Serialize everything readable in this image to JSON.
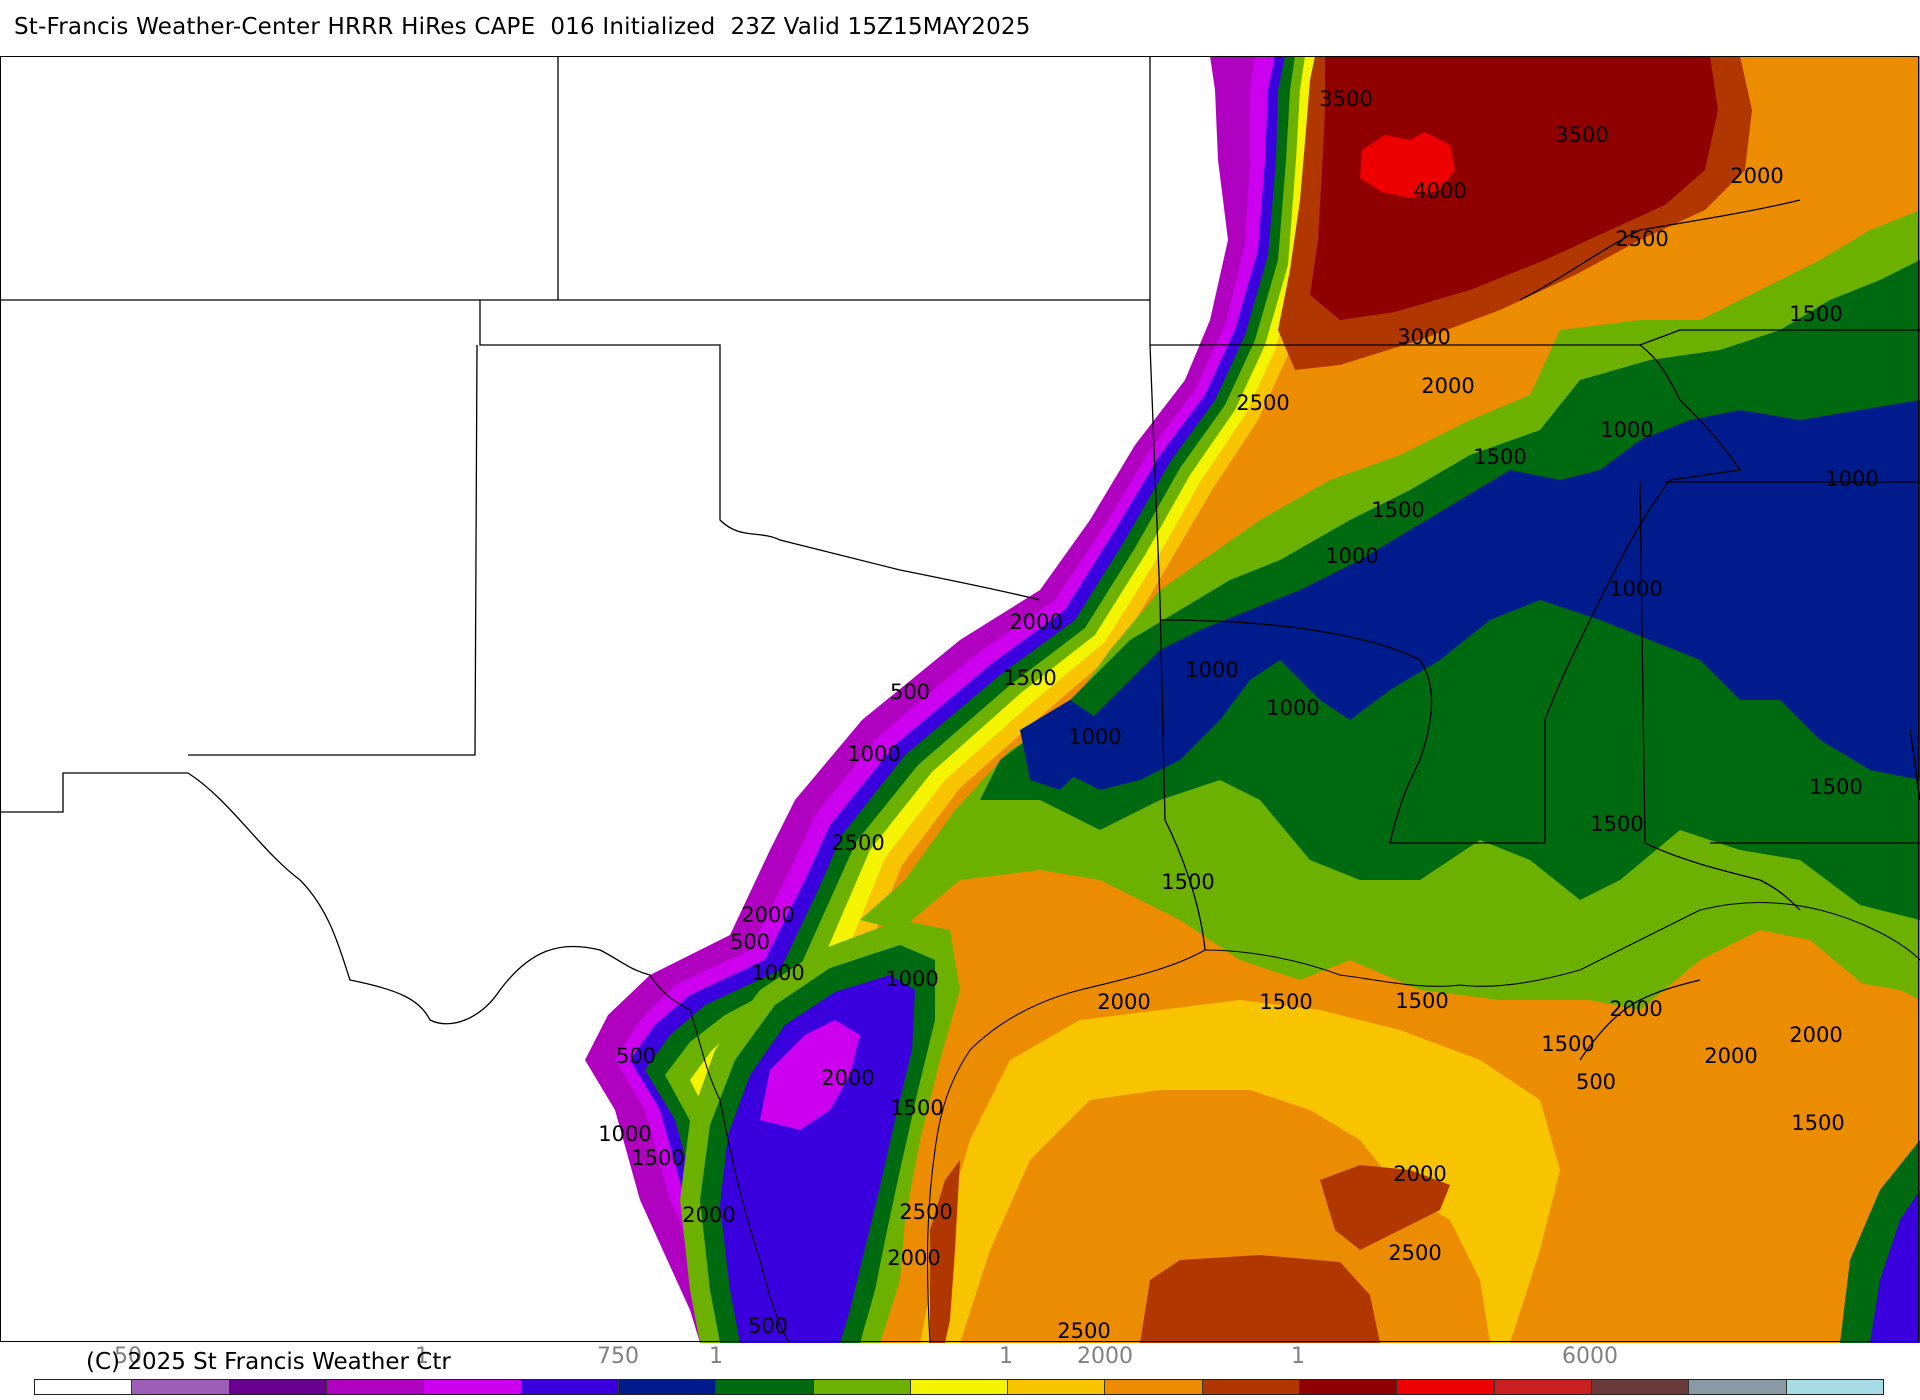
{
  "header": {
    "title": "St-Francis Weather-Center HRRR HiRes CAPE  016 Initialized  23Z Valid 15Z15MAY2025"
  },
  "footer": {
    "copyright": "(C) 2025 St Francis Weather Ctr"
  },
  "legend": {
    "tick_labels": [
      {
        "label": "50"
      },
      {
        "label": "1"
      },
      {
        "label": "750"
      },
      {
        "label": "1"
      },
      {
        "label": "1"
      },
      {
        "label": "2000"
      },
      {
        "label": "1"
      },
      {
        "label": "6000"
      }
    ],
    "colors": [
      "#ffffff",
      "#9c5fb5",
      "#6a0090",
      "#b000c0",
      "#cc00ee",
      "#3a00dd",
      "#001c8c",
      "#006a10",
      "#6cb000",
      "#f4f400",
      "#f8c400",
      "#ec8c00",
      "#b03800",
      "#900000",
      "#ee0000",
      "#c82020",
      "#6a3a3a",
      "#8a9aa4",
      "#a8dce4"
    ]
  },
  "map": {
    "colors": {
      "none": "#ffffff",
      "c250": "#b000c0",
      "c500": "#cc00ee",
      "c750": "#3a00dd",
      "c1000": "#001c8c",
      "c1250": "#006a10",
      "c1500": "#6cb000",
      "c1750": "#f4f400",
      "c2000": "#f8c400",
      "c2250": "#ec8c00",
      "c2500": "#b03800",
      "c3000": "#900000",
      "c4000": "#ee0000"
    },
    "contour_labels": [
      {
        "text": "3500"
      },
      {
        "text": "3500"
      },
      {
        "text": "4000"
      },
      {
        "text": "2000"
      },
      {
        "text": "2500"
      },
      {
        "text": "3000"
      },
      {
        "text": "1500"
      },
      {
        "text": "2500"
      },
      {
        "text": "2000"
      },
      {
        "text": "1000"
      },
      {
        "text": "1500"
      },
      {
        "text": "1000"
      },
      {
        "text": "1500"
      },
      {
        "text": "1000"
      },
      {
        "text": "1000"
      },
      {
        "text": "2000"
      },
      {
        "text": "1500"
      },
      {
        "text": "1000"
      },
      {
        "text": "1000"
      },
      {
        "text": "500"
      },
      {
        "text": "1000"
      },
      {
        "text": "1000"
      },
      {
        "text": "1500"
      },
      {
        "text": "1500"
      },
      {
        "text": "2500"
      },
      {
        "text": "1500"
      },
      {
        "text": "2000"
      },
      {
        "text": "500"
      },
      {
        "text": "1000"
      },
      {
        "text": "1000"
      },
      {
        "text": "1500"
      },
      {
        "text": "2000"
      },
      {
        "text": "1500"
      },
      {
        "text": "2000"
      },
      {
        "text": "2000"
      },
      {
        "text": "2000"
      },
      {
        "text": "1500"
      },
      {
        "text": "500"
      },
      {
        "text": "2000"
      },
      {
        "text": "500"
      },
      {
        "text": "1500"
      },
      {
        "text": "1000"
      },
      {
        "text": "1500"
      },
      {
        "text": "1500"
      },
      {
        "text": "2000"
      },
      {
        "text": "2500"
      },
      {
        "text": "2000"
      },
      {
        "text": "2000"
      },
      {
        "text": "2500"
      },
      {
        "text": "2500"
      },
      {
        "text": "500"
      }
    ]
  }
}
